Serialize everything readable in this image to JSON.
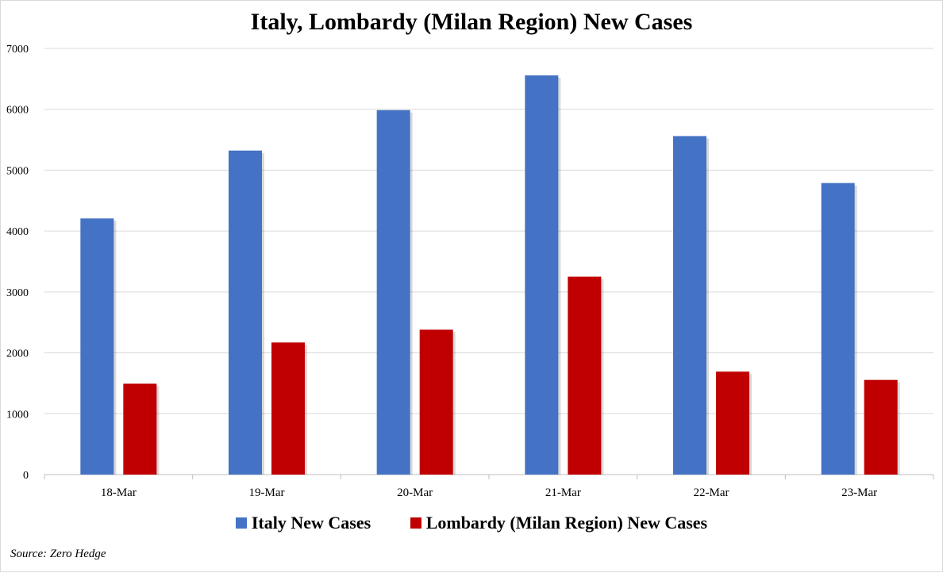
{
  "chart_data": {
    "type": "bar",
    "title": "Italy, Lombardy (Milan Region) New Cases",
    "categories": [
      "18-Mar",
      "19-Mar",
      "20-Mar",
      "21-Mar",
      "22-Mar",
      "23-Mar"
    ],
    "series": [
      {
        "name": "Italy New Cases",
        "color": "#4472c4",
        "values": [
          4207,
          5322,
          5986,
          6557,
          5560,
          4789
        ]
      },
      {
        "name": "Lombardy (Milan Region) New Cases",
        "color": "#c00000",
        "values": [
          1493,
          2171,
          2380,
          3251,
          1691,
          1555
        ]
      }
    ],
    "ylim": [
      0,
      7000
    ],
    "yticks": [
      "0",
      "1000",
      "2000",
      "3000",
      "4000",
      "5000",
      "6000",
      "7000"
    ],
    "grid": true,
    "legend": "bottom",
    "source": "Source: Zero Hedge"
  }
}
